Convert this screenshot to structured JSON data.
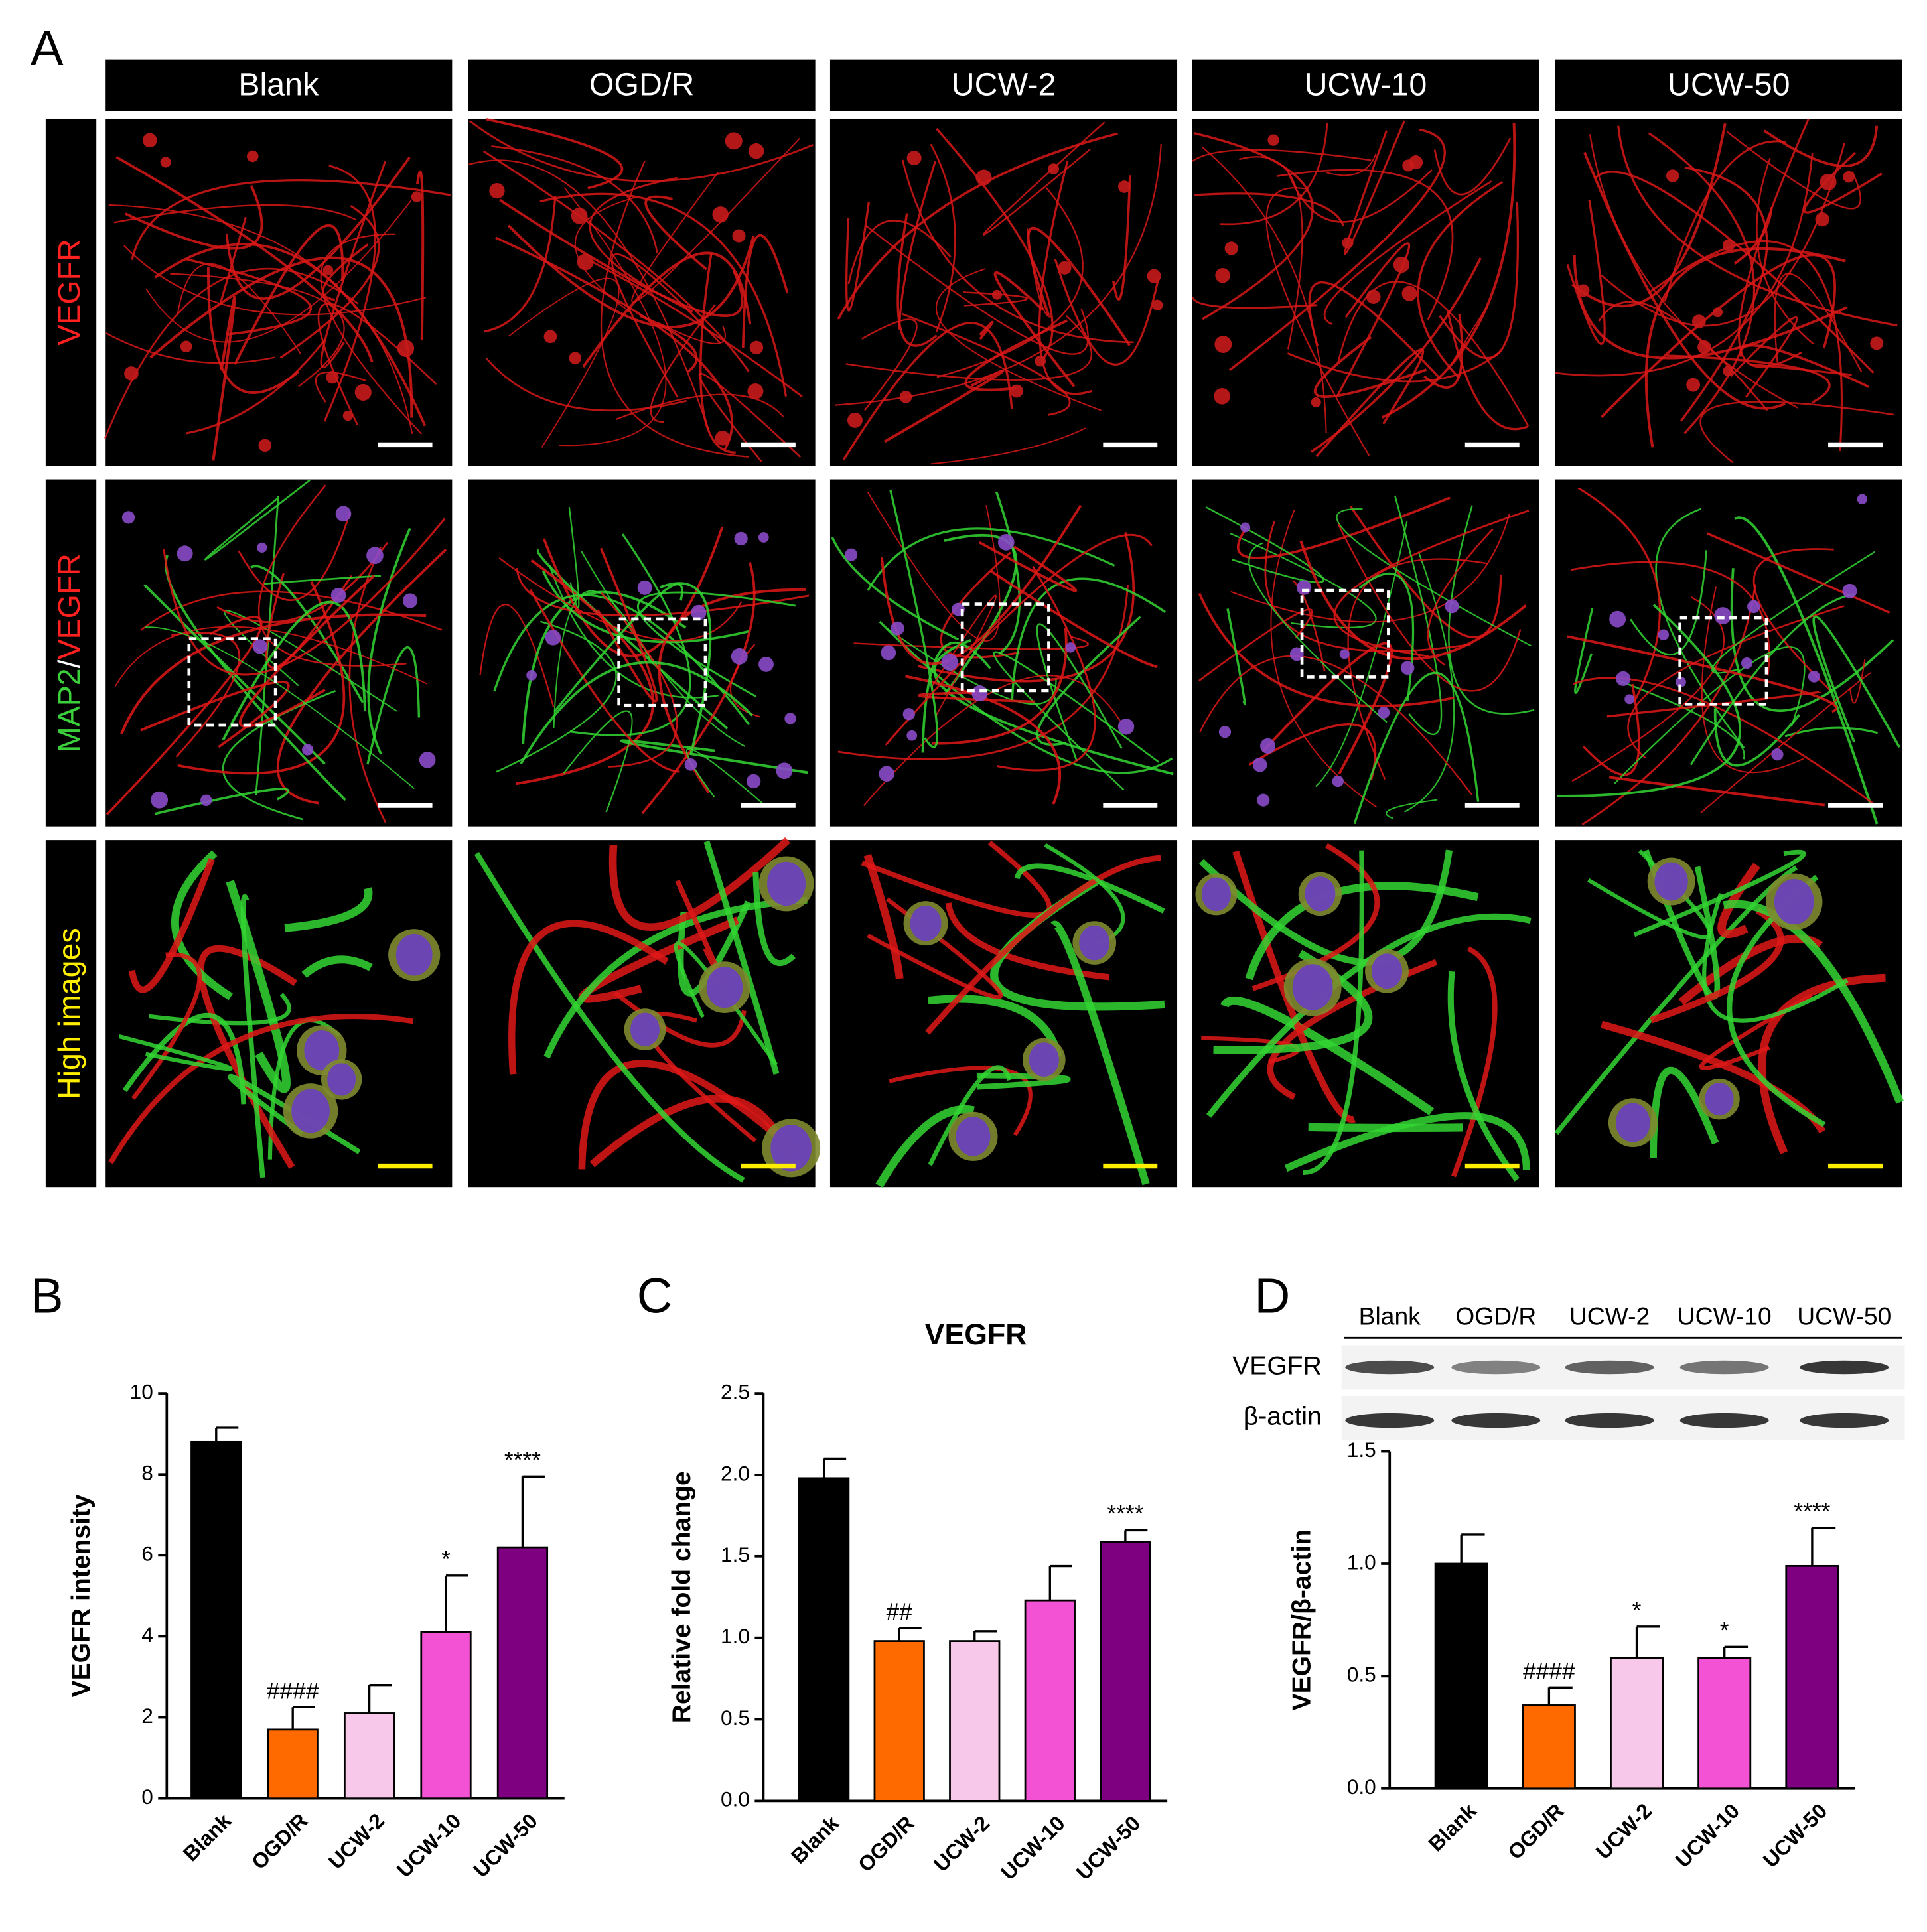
{
  "panel_a": {
    "letter": "A",
    "columns": [
      "Blank",
      "OGD/R",
      "UCW-2",
      "UCW-10",
      "UCW-50"
    ],
    "rows": [
      {
        "segments": [
          {
            "text": "VEGFR",
            "color": "#ff2020"
          }
        ]
      },
      {
        "segments": [
          {
            "text": "MAP2",
            "color": "#3ccf3c"
          },
          {
            "text": "/",
            "color": "#ffffff"
          },
          {
            "text": "VEGFR",
            "color": "#ff2020"
          }
        ]
      },
      {
        "segments": [
          {
            "text": "High images",
            "color": "#ffee00"
          }
        ]
      }
    ]
  },
  "blot": {
    "lanes": [
      "Blank",
      "OGD/R",
      "UCW-2",
      "UCW-10",
      "UCW-50"
    ],
    "rows": [
      "VEGFR",
      "β-actin"
    ]
  },
  "chart_data": [
    {
      "type": "bar",
      "panel_letter": "B",
      "y_label": "VEGFR intensity",
      "categories": [
        "Blank",
        "OGD/R",
        "UCW-2",
        "UCW-10",
        "UCW-50"
      ],
      "values": [
        8.8,
        1.7,
        2.1,
        4.1,
        6.2
      ],
      "errors": [
        0.35,
        0.55,
        0.7,
        1.4,
        1.75
      ],
      "colors": [
        "#000000",
        "#ff6a00",
        "#f8c8ea",
        "#f452d4",
        "#7e0080"
      ],
      "significance": [
        null,
        "####",
        null,
        "*",
        "****"
      ],
      "ylim": [
        0,
        10
      ],
      "yticks": [
        0,
        2,
        4,
        6,
        8,
        10
      ]
    },
    {
      "type": "bar",
      "panel_letter": "C",
      "title": "VEGFR",
      "y_label": "Relative fold change",
      "categories": [
        "Blank",
        "OGD/R",
        "UCW-2",
        "UCW-10",
        "UCW-50"
      ],
      "values": [
        1.98,
        0.98,
        0.98,
        1.23,
        1.59
      ],
      "errors": [
        0.12,
        0.08,
        0.06,
        0.21,
        0.07
      ],
      "colors": [
        "#000000",
        "#ff6a00",
        "#f8c8ea",
        "#f452d4",
        "#7e0080"
      ],
      "significance": [
        null,
        "##",
        null,
        null,
        "****"
      ],
      "ylim": [
        0,
        2.5
      ],
      "yticks": [
        {
          "value": 0,
          "label": "0.0"
        },
        0.5,
        {
          "value": 1,
          "label": "1.0"
        },
        1.5,
        {
          "value": 2,
          "label": "2.0"
        },
        2.5
      ]
    },
    {
      "type": "bar",
      "panel_letter": "D",
      "y_label": "VEGFR/β-actin",
      "categories": [
        "Blank",
        "OGD/R",
        "UCW-2",
        "UCW-10",
        "UCW-50"
      ],
      "values": [
        1.0,
        0.37,
        0.58,
        0.58,
        0.99
      ],
      "errors": [
        0.13,
        0.08,
        0.14,
        0.05,
        0.17
      ],
      "colors": [
        "#000000",
        "#ff6a00",
        "#f8c8ea",
        "#f452d4",
        "#7e0080"
      ],
      "significance": [
        null,
        "####",
        "*",
        "*",
        "****"
      ],
      "ylim": [
        0,
        1.5
      ],
      "yticks": [
        {
          "value": 0,
          "label": "0.0"
        },
        0.5,
        {
          "value": 1,
          "label": "1.0"
        },
        1.5
      ]
    }
  ]
}
